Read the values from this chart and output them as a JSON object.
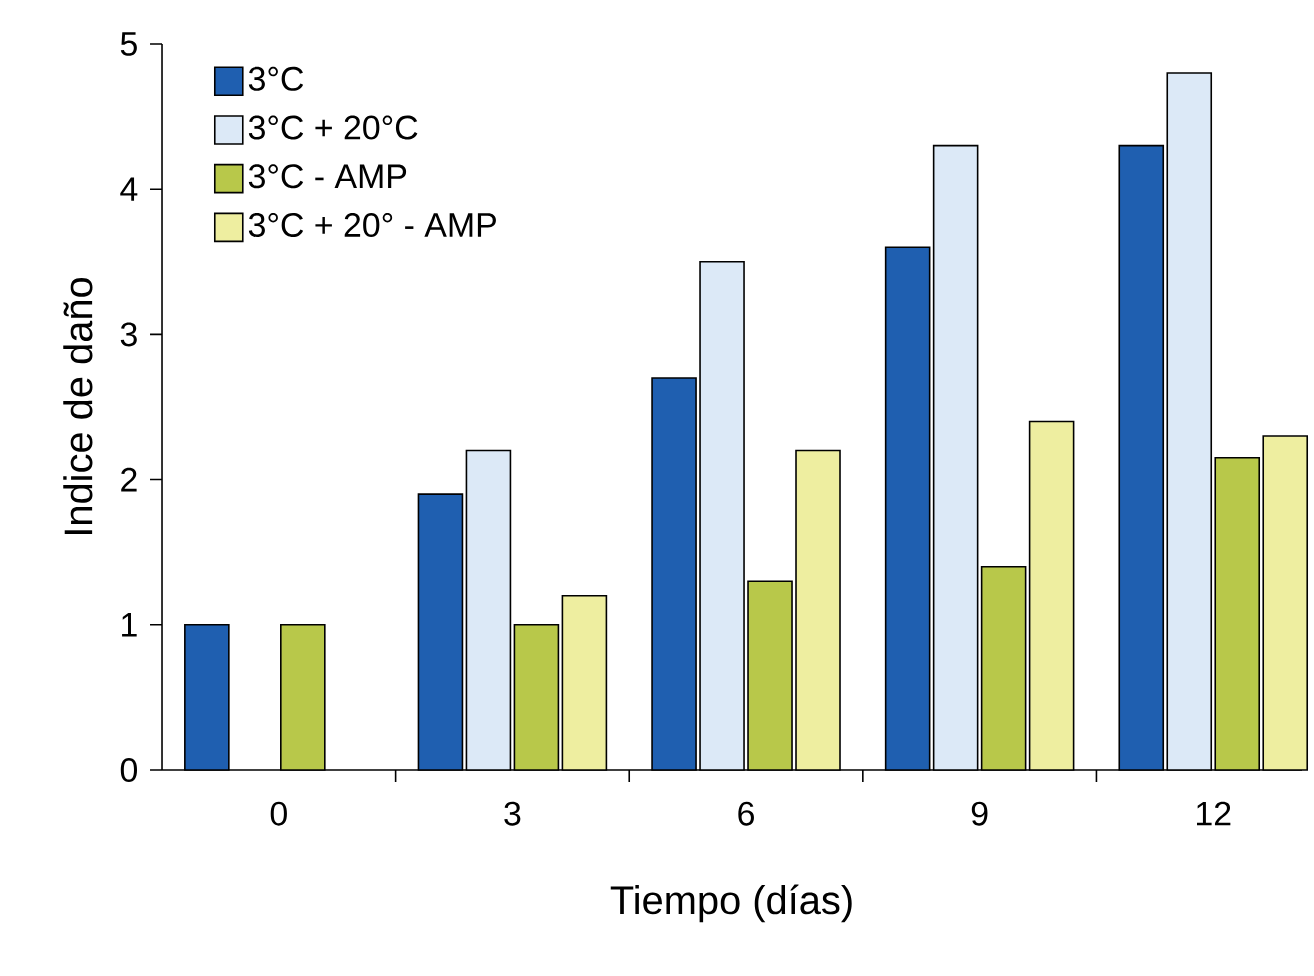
{
  "chart_data": {
    "type": "bar",
    "xlabel": "Tiempo (días)",
    "ylabel": "Indice de daño",
    "categories": [
      "0",
      "3",
      "6",
      "9",
      "12"
    ],
    "series": [
      {
        "name": "3°C",
        "color": "#1f5fb0",
        "values": [
          1.0,
          1.9,
          2.7,
          3.6,
          4.3
        ]
      },
      {
        "name": "3°C + 20°C",
        "color": "#dce9f7",
        "values": [
          null,
          2.2,
          3.5,
          4.3,
          4.8
        ]
      },
      {
        "name": "3°C - AMP",
        "color": "#b8c84a",
        "values": [
          1.0,
          1.0,
          1.3,
          1.4,
          2.15
        ]
      },
      {
        "name": "3°C + 20° - AMP",
        "color": "#eeeea0",
        "values": [
          null,
          1.2,
          2.2,
          2.4,
          2.3
        ]
      }
    ],
    "ylim": [
      0,
      5
    ],
    "yticks": [
      0,
      1,
      2,
      3,
      4,
      5
    ],
    "legend": "top left"
  }
}
